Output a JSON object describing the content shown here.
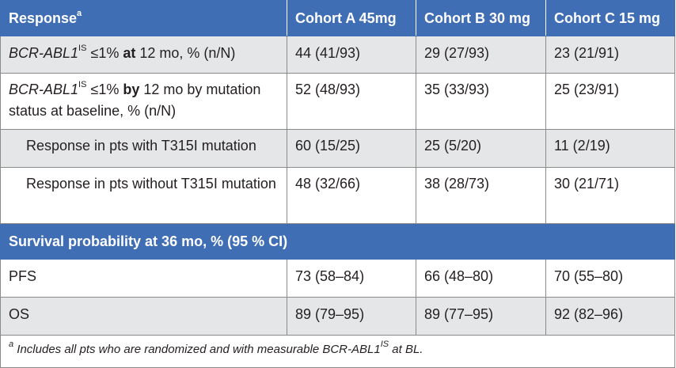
{
  "header": {
    "response_label": "Response",
    "response_sup": "a",
    "cohort_a": "Cohort A 45mg",
    "cohort_b": "Cohort B 30 mg",
    "cohort_c": "Cohort C 15 mg"
  },
  "rows": [
    {
      "label_gene": "BCR-ABL1",
      "label_sup": "IS",
      "label_pre": " ≤1% ",
      "label_bold": "at",
      "label_post": " 12 mo, % (n/N)",
      "a": "44 (41/93)",
      "b": "29 (27/93)",
      "c": "23 (21/91)"
    },
    {
      "label_gene": "BCR-ABL1",
      "label_sup": "IS",
      "label_pre": " ≤1% ",
      "label_bold": "by",
      "label_post": " 12 mo by mutation status at baseline, % (n/N)",
      "a": "52 (48/93)",
      "b": "35 (33/93)",
      "c": "25 (23/91)"
    },
    {
      "label": "Response in pts with T315I mutation",
      "a": "60 (15/25)",
      "b": "25 (5/20)",
      "c": "11 (2/19)"
    },
    {
      "label": "Response in pts without T315I mutation",
      "a": "48 (32/66)",
      "b": "38 (28/73)",
      "c": "30 (21/71)"
    }
  ],
  "section": "Survival probability at 36 mo, % (95 % CI)",
  "survival": [
    {
      "label": "PFS",
      "a": "73 (58–84)",
      "b": "66 (48–80)",
      "c": "70 (55–80)"
    },
    {
      "label": "OS",
      "a": "89 (79–95)",
      "b": "89 (77–95)",
      "c": "92 (82–96)"
    }
  ],
  "footnote": {
    "sup": "a",
    "pre": " Includes all pts who are randomized and with measurable ",
    "gene": "BCR-ABL1",
    "gene_sup": "IS",
    "post": " at BL."
  },
  "colors": {
    "header_bg": "#3f6eb4",
    "row_gray": "#e5e6e7",
    "border": "#8a8a8a"
  }
}
